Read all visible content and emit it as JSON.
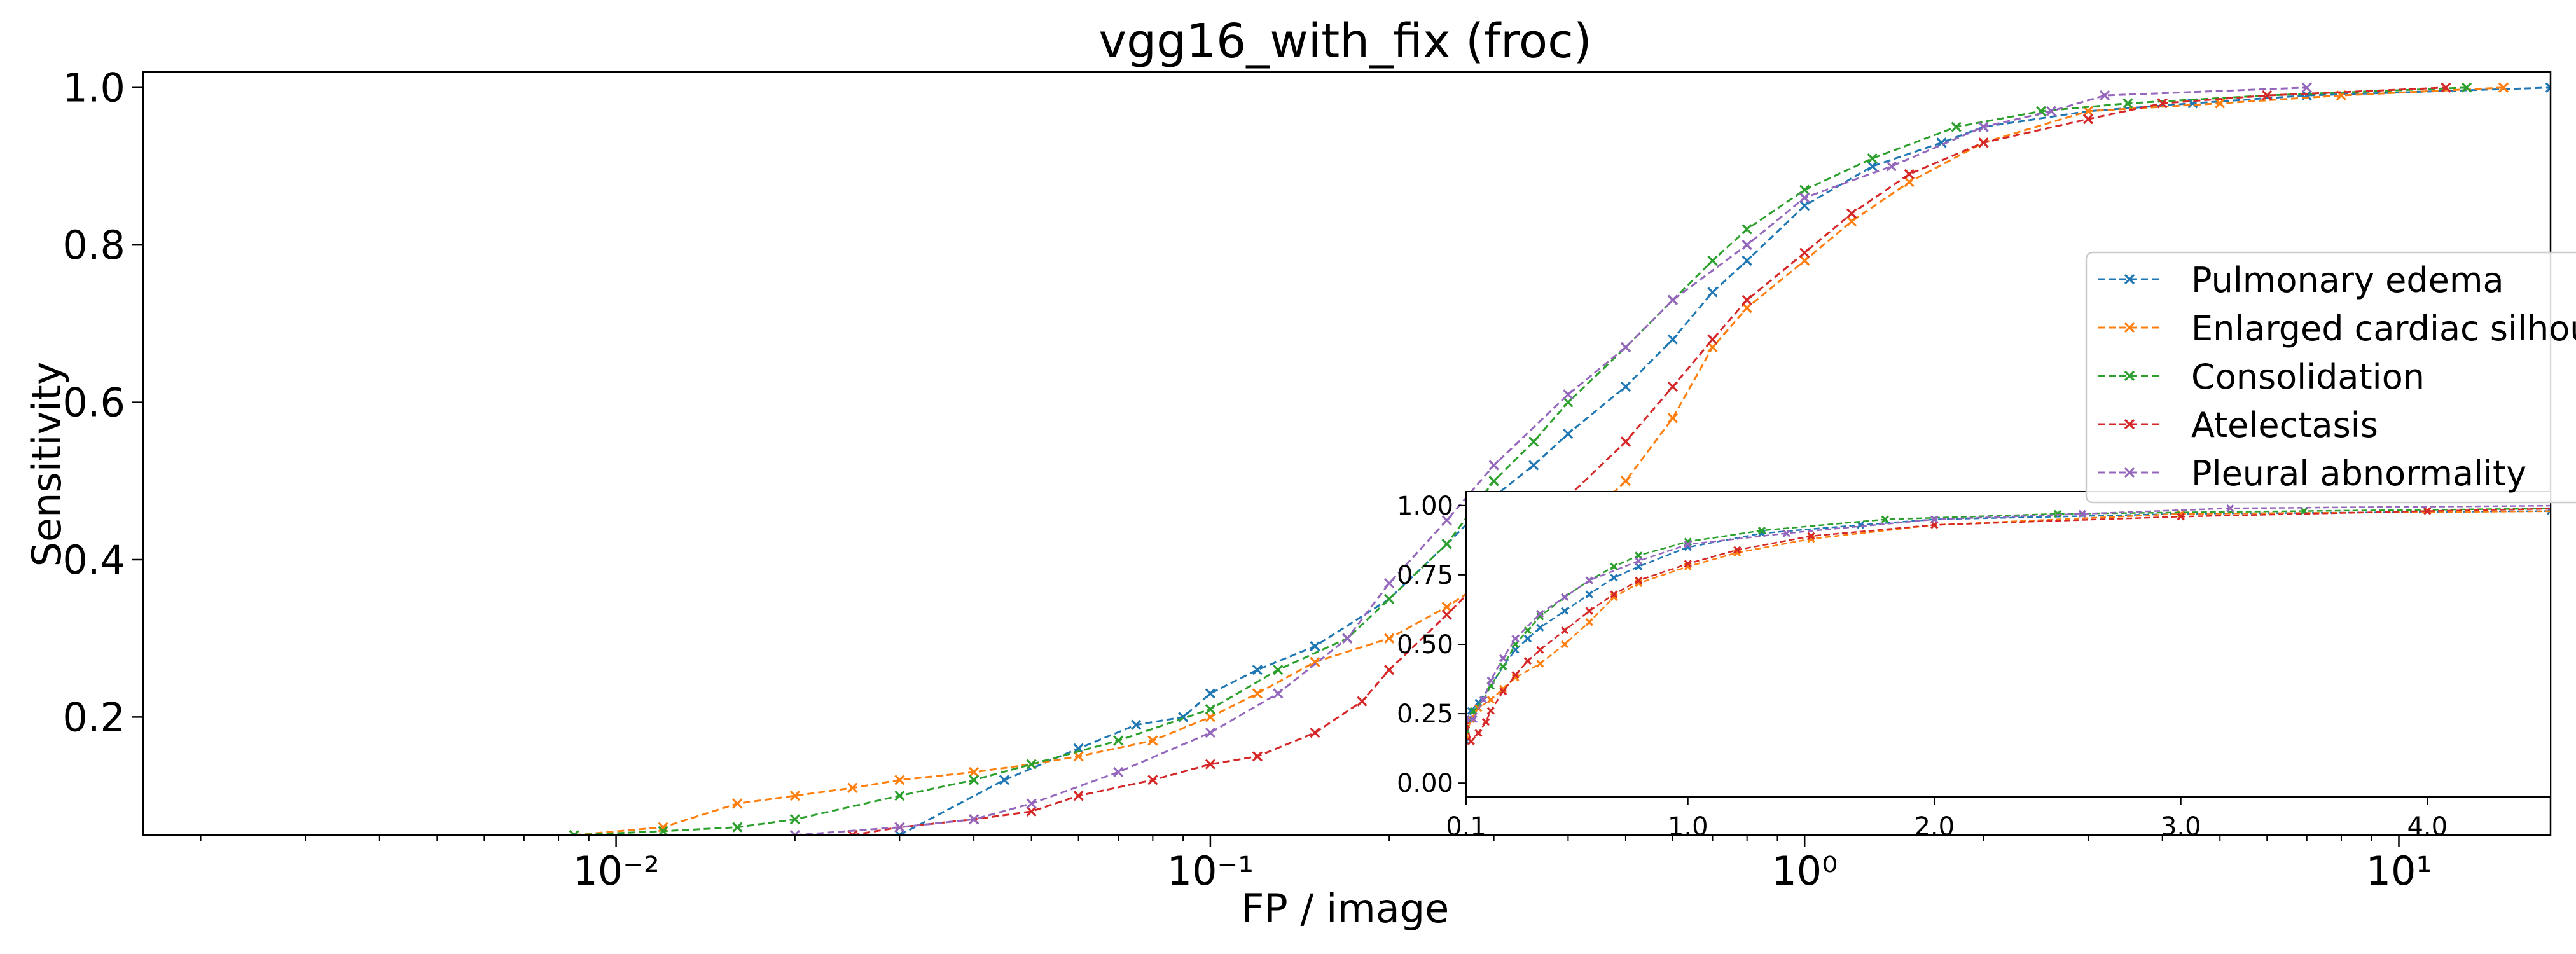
{
  "chart_data": {
    "type": "line",
    "title": "vgg16_with_fix (froc)",
    "xlabel": "FP / image",
    "ylabel": "Sensitivity",
    "xscale": "log",
    "xlim": [
      0.0016,
      18
    ],
    "ylim": [
      0.05,
      1.02
    ],
    "x_tick_labels": [
      "10⁻²",
      "10⁻¹",
      "10⁰",
      "10¹"
    ],
    "y_tick_labels": [
      "0.2",
      "0.4",
      "0.6",
      "0.8",
      "1.0"
    ],
    "grid": false,
    "legend_position": "right, partially clipped",
    "legend_entries": [
      "Pulmonary edema",
      "Enlarged cardiac silhou",
      "Consolidation",
      "Atelectasis",
      "Pleural abnormality"
    ],
    "series": [
      {
        "name": "Pulmonary edema",
        "color": "#1f77b4",
        "x": [
          0.03,
          0.045,
          0.06,
          0.075,
          0.09,
          0.1,
          0.12,
          0.15,
          0.2,
          0.25,
          0.3,
          0.35,
          0.4,
          0.5,
          0.6,
          0.7,
          0.8,
          1.0,
          1.3,
          1.7,
          2.0,
          3.0,
          4.5,
          7.0,
          18.0
        ],
        "y": [
          0.05,
          0.12,
          0.16,
          0.19,
          0.2,
          0.23,
          0.26,
          0.29,
          0.35,
          0.42,
          0.48,
          0.52,
          0.56,
          0.62,
          0.68,
          0.74,
          0.78,
          0.85,
          0.9,
          0.93,
          0.95,
          0.97,
          0.98,
          0.99,
          1.0
        ]
      },
      {
        "name": "Enlarged cardiac silhou",
        "color": "#ff7f0e",
        "x": [
          0.0085,
          0.012,
          0.016,
          0.02,
          0.025,
          0.03,
          0.04,
          0.05,
          0.06,
          0.08,
          0.1,
          0.12,
          0.15,
          0.2,
          0.25,
          0.3,
          0.4,
          0.5,
          0.6,
          0.7,
          0.8,
          1.0,
          1.2,
          1.5,
          2.0,
          3.0,
          5.0,
          8.0,
          15.0
        ],
        "y": [
          0.05,
          0.06,
          0.09,
          0.1,
          0.11,
          0.12,
          0.13,
          0.14,
          0.15,
          0.17,
          0.2,
          0.23,
          0.27,
          0.3,
          0.34,
          0.38,
          0.43,
          0.5,
          0.58,
          0.67,
          0.72,
          0.78,
          0.83,
          0.88,
          0.93,
          0.97,
          0.98,
          0.99,
          1.0
        ]
      },
      {
        "name": "Consolidation",
        "color": "#2ca02c",
        "x": [
          0.0085,
          0.012,
          0.016,
          0.02,
          0.03,
          0.04,
          0.05,
          0.07,
          0.1,
          0.13,
          0.17,
          0.2,
          0.25,
          0.3,
          0.35,
          0.4,
          0.5,
          0.6,
          0.7,
          0.8,
          1.0,
          1.3,
          1.8,
          2.5,
          3.5,
          6.0,
          13.0
        ],
        "y": [
          0.05,
          0.055,
          0.06,
          0.07,
          0.1,
          0.12,
          0.14,
          0.17,
          0.21,
          0.26,
          0.3,
          0.35,
          0.42,
          0.5,
          0.55,
          0.6,
          0.67,
          0.73,
          0.78,
          0.82,
          0.87,
          0.91,
          0.95,
          0.97,
          0.98,
          0.99,
          1.0
        ]
      },
      {
        "name": "Atelectasis",
        "color": "#d62728",
        "x": [
          0.025,
          0.03,
          0.04,
          0.05,
          0.06,
          0.08,
          0.1,
          0.12,
          0.15,
          0.18,
          0.2,
          0.25,
          0.3,
          0.35,
          0.4,
          0.5,
          0.6,
          0.7,
          0.8,
          1.0,
          1.2,
          1.5,
          2.0,
          3.0,
          4.0,
          6.0,
          12.0
        ],
        "y": [
          0.05,
          0.06,
          0.07,
          0.08,
          0.1,
          0.12,
          0.14,
          0.15,
          0.18,
          0.22,
          0.26,
          0.33,
          0.39,
          0.44,
          0.48,
          0.55,
          0.62,
          0.68,
          0.73,
          0.79,
          0.84,
          0.89,
          0.93,
          0.96,
          0.98,
          0.99,
          1.0
        ]
      },
      {
        "name": "Pleural abnormality",
        "color": "#9467bd",
        "x": [
          0.02,
          0.03,
          0.04,
          0.05,
          0.07,
          0.1,
          0.13,
          0.17,
          0.2,
          0.25,
          0.3,
          0.4,
          0.5,
          0.6,
          0.8,
          1.0,
          1.4,
          2.0,
          2.6,
          3.2,
          7.0
        ],
        "y": [
          0.05,
          0.06,
          0.07,
          0.09,
          0.13,
          0.18,
          0.23,
          0.3,
          0.37,
          0.45,
          0.52,
          0.61,
          0.67,
          0.73,
          0.8,
          0.86,
          0.9,
          0.95,
          0.97,
          0.99,
          1.0
        ]
      }
    ]
  },
  "inset_chart": {
    "type": "line",
    "xlim": [
      0.1,
      4.5
    ],
    "ylim": [
      -0.05,
      1.05
    ],
    "x_tick_labels": [
      "0.1",
      "1.0",
      "2.0",
      "3.0",
      "4.0"
    ],
    "y_tick_labels": [
      "0.00",
      "0.25",
      "0.50",
      "0.75",
      "1.00"
    ]
  }
}
